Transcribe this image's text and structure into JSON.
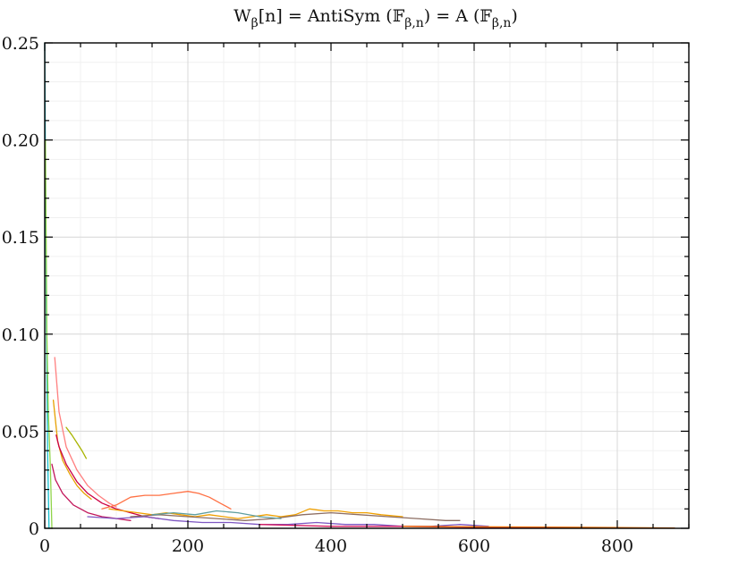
{
  "chart_data": {
    "type": "line",
    "title": "W_β[n] = AntiSym (𝔽_β,n) = A (𝔽_β,n)",
    "title_parts": {
      "w": "W",
      "w_sub": "β",
      "mid": "[n] = AntiSym (𝔽",
      "sub1": "β,n",
      "mid2": ") = A (𝔽",
      "sub2": "β,n",
      "end": ")"
    },
    "xlabel": "",
    "ylabel": "",
    "xlim": [
      0,
      900
    ],
    "ylim": [
      0,
      0.25
    ],
    "x_major_ticks": [
      0,
      200,
      400,
      600,
      800
    ],
    "x_tick_labels": [
      "0",
      "200",
      "400",
      "600",
      "800"
    ],
    "y_major_ticks": [
      0,
      0.05,
      0.1,
      0.15,
      0.2,
      0.25
    ],
    "y_tick_labels": [
      "0",
      "0.05",
      "0.10",
      "0.15",
      "0.20",
      "0.25"
    ],
    "grid": true,
    "series": [
      {
        "color": "#17becf",
        "points": [
          [
            0,
            0.25
          ],
          [
            2,
            0.12
          ],
          [
            4,
            0.04
          ],
          [
            6,
            0.0
          ]
        ]
      },
      {
        "color": "#8fd44a",
        "points": [
          [
            1,
            0.2
          ],
          [
            3,
            0.1
          ],
          [
            5,
            0.06
          ],
          [
            8,
            0.03
          ],
          [
            10,
            0.0
          ]
        ]
      },
      {
        "color": "#ff7f7f",
        "points": [
          [
            14,
            0.088
          ],
          [
            20,
            0.06
          ],
          [
            30,
            0.042
          ],
          [
            45,
            0.03
          ],
          [
            60,
            0.022
          ],
          [
            75,
            0.017
          ],
          [
            90,
            0.013
          ],
          [
            100,
            0.011
          ]
        ]
      },
      {
        "color": "#e6a000",
        "points": [
          [
            12,
            0.066
          ],
          [
            18,
            0.045
          ],
          [
            25,
            0.035
          ],
          [
            35,
            0.028
          ],
          [
            45,
            0.022
          ],
          [
            55,
            0.018
          ],
          [
            65,
            0.015
          ]
        ]
      },
      {
        "color": "#a8b400",
        "points": [
          [
            30,
            0.052
          ],
          [
            38,
            0.048
          ],
          [
            45,
            0.044
          ],
          [
            52,
            0.04
          ],
          [
            58,
            0.036
          ]
        ]
      },
      {
        "color": "#cc0044",
        "points": [
          [
            16,
            0.048
          ],
          [
            20,
            0.042
          ],
          [
            30,
            0.033
          ],
          [
            45,
            0.024
          ],
          [
            60,
            0.018
          ],
          [
            80,
            0.013
          ],
          [
            100,
            0.01
          ],
          [
            120,
            0.008
          ],
          [
            140,
            0.006
          ],
          [
            160,
            0.005
          ]
        ]
      },
      {
        "color": "#c2185b",
        "points": [
          [
            10,
            0.033
          ],
          [
            15,
            0.025
          ],
          [
            25,
            0.018
          ],
          [
            40,
            0.012
          ],
          [
            60,
            0.008
          ],
          [
            80,
            0.006
          ],
          [
            100,
            0.005
          ],
          [
            120,
            0.004
          ]
        ]
      },
      {
        "color": "#ff7043",
        "points": [
          [
            80,
            0.01
          ],
          [
            100,
            0.012
          ],
          [
            120,
            0.016
          ],
          [
            140,
            0.017
          ],
          [
            160,
            0.017
          ],
          [
            180,
            0.018
          ],
          [
            200,
            0.019
          ],
          [
            215,
            0.018
          ],
          [
            230,
            0.016
          ],
          [
            245,
            0.013
          ],
          [
            260,
            0.01
          ]
        ]
      },
      {
        "color": "#f0a000",
        "points": [
          [
            90,
            0.01
          ],
          [
            110,
            0.009
          ],
          [
            130,
            0.008
          ],
          [
            150,
            0.007
          ],
          [
            170,
            0.008
          ],
          [
            190,
            0.007
          ],
          [
            210,
            0.006
          ],
          [
            230,
            0.007
          ],
          [
            250,
            0.006
          ],
          [
            270,
            0.005
          ],
          [
            290,
            0.006
          ],
          [
            310,
            0.007
          ],
          [
            330,
            0.006
          ],
          [
            350,
            0.007
          ],
          [
            370,
            0.01
          ],
          [
            390,
            0.009
          ],
          [
            410,
            0.009
          ],
          [
            430,
            0.008
          ],
          [
            450,
            0.008
          ],
          [
            470,
            0.007
          ],
          [
            500,
            0.006
          ]
        ]
      },
      {
        "color": "#7e57c2",
        "points": [
          [
            60,
            0.006
          ],
          [
            100,
            0.005
          ],
          [
            140,
            0.006
          ],
          [
            180,
            0.004
          ],
          [
            220,
            0.003
          ],
          [
            260,
            0.003
          ],
          [
            300,
            0.002
          ],
          [
            340,
            0.002
          ],
          [
            380,
            0.003
          ],
          [
            420,
            0.002
          ],
          [
            460,
            0.002
          ],
          [
            500,
            0.001
          ],
          [
            540,
            0.001
          ],
          [
            580,
            0.002
          ],
          [
            620,
            0.001
          ]
        ]
      },
      {
        "color": "#8d6e63",
        "points": [
          [
            120,
            0.006
          ],
          [
            160,
            0.007
          ],
          [
            200,
            0.006
          ],
          [
            240,
            0.005
          ],
          [
            280,
            0.004
          ],
          [
            320,
            0.005
          ],
          [
            360,
            0.007
          ],
          [
            400,
            0.008
          ],
          [
            440,
            0.007
          ],
          [
            480,
            0.006
          ],
          [
            520,
            0.005
          ],
          [
            560,
            0.004
          ],
          [
            580,
            0.004
          ]
        ]
      },
      {
        "color": "#5f9ea0",
        "points": [
          [
            150,
            0.007
          ],
          [
            180,
            0.008
          ],
          [
            210,
            0.007
          ],
          [
            240,
            0.009
          ],
          [
            270,
            0.008
          ],
          [
            300,
            0.006
          ],
          [
            330,
            0.005
          ]
        ]
      },
      {
        "color": "#d81b60",
        "points": [
          [
            300,
            0.002
          ],
          [
            400,
            0.001
          ],
          [
            500,
            0.001
          ],
          [
            600,
            0.0005
          ],
          [
            700,
            0.0003
          ],
          [
            800,
            0.0002
          ],
          [
            880,
            0.0001
          ]
        ]
      },
      {
        "color": "#ef6c00",
        "points": [
          [
            500,
            0.001
          ],
          [
            600,
            0.0008
          ],
          [
            700,
            0.0006
          ],
          [
            800,
            0.0004
          ],
          [
            880,
            0.0002
          ]
        ]
      }
    ]
  }
}
